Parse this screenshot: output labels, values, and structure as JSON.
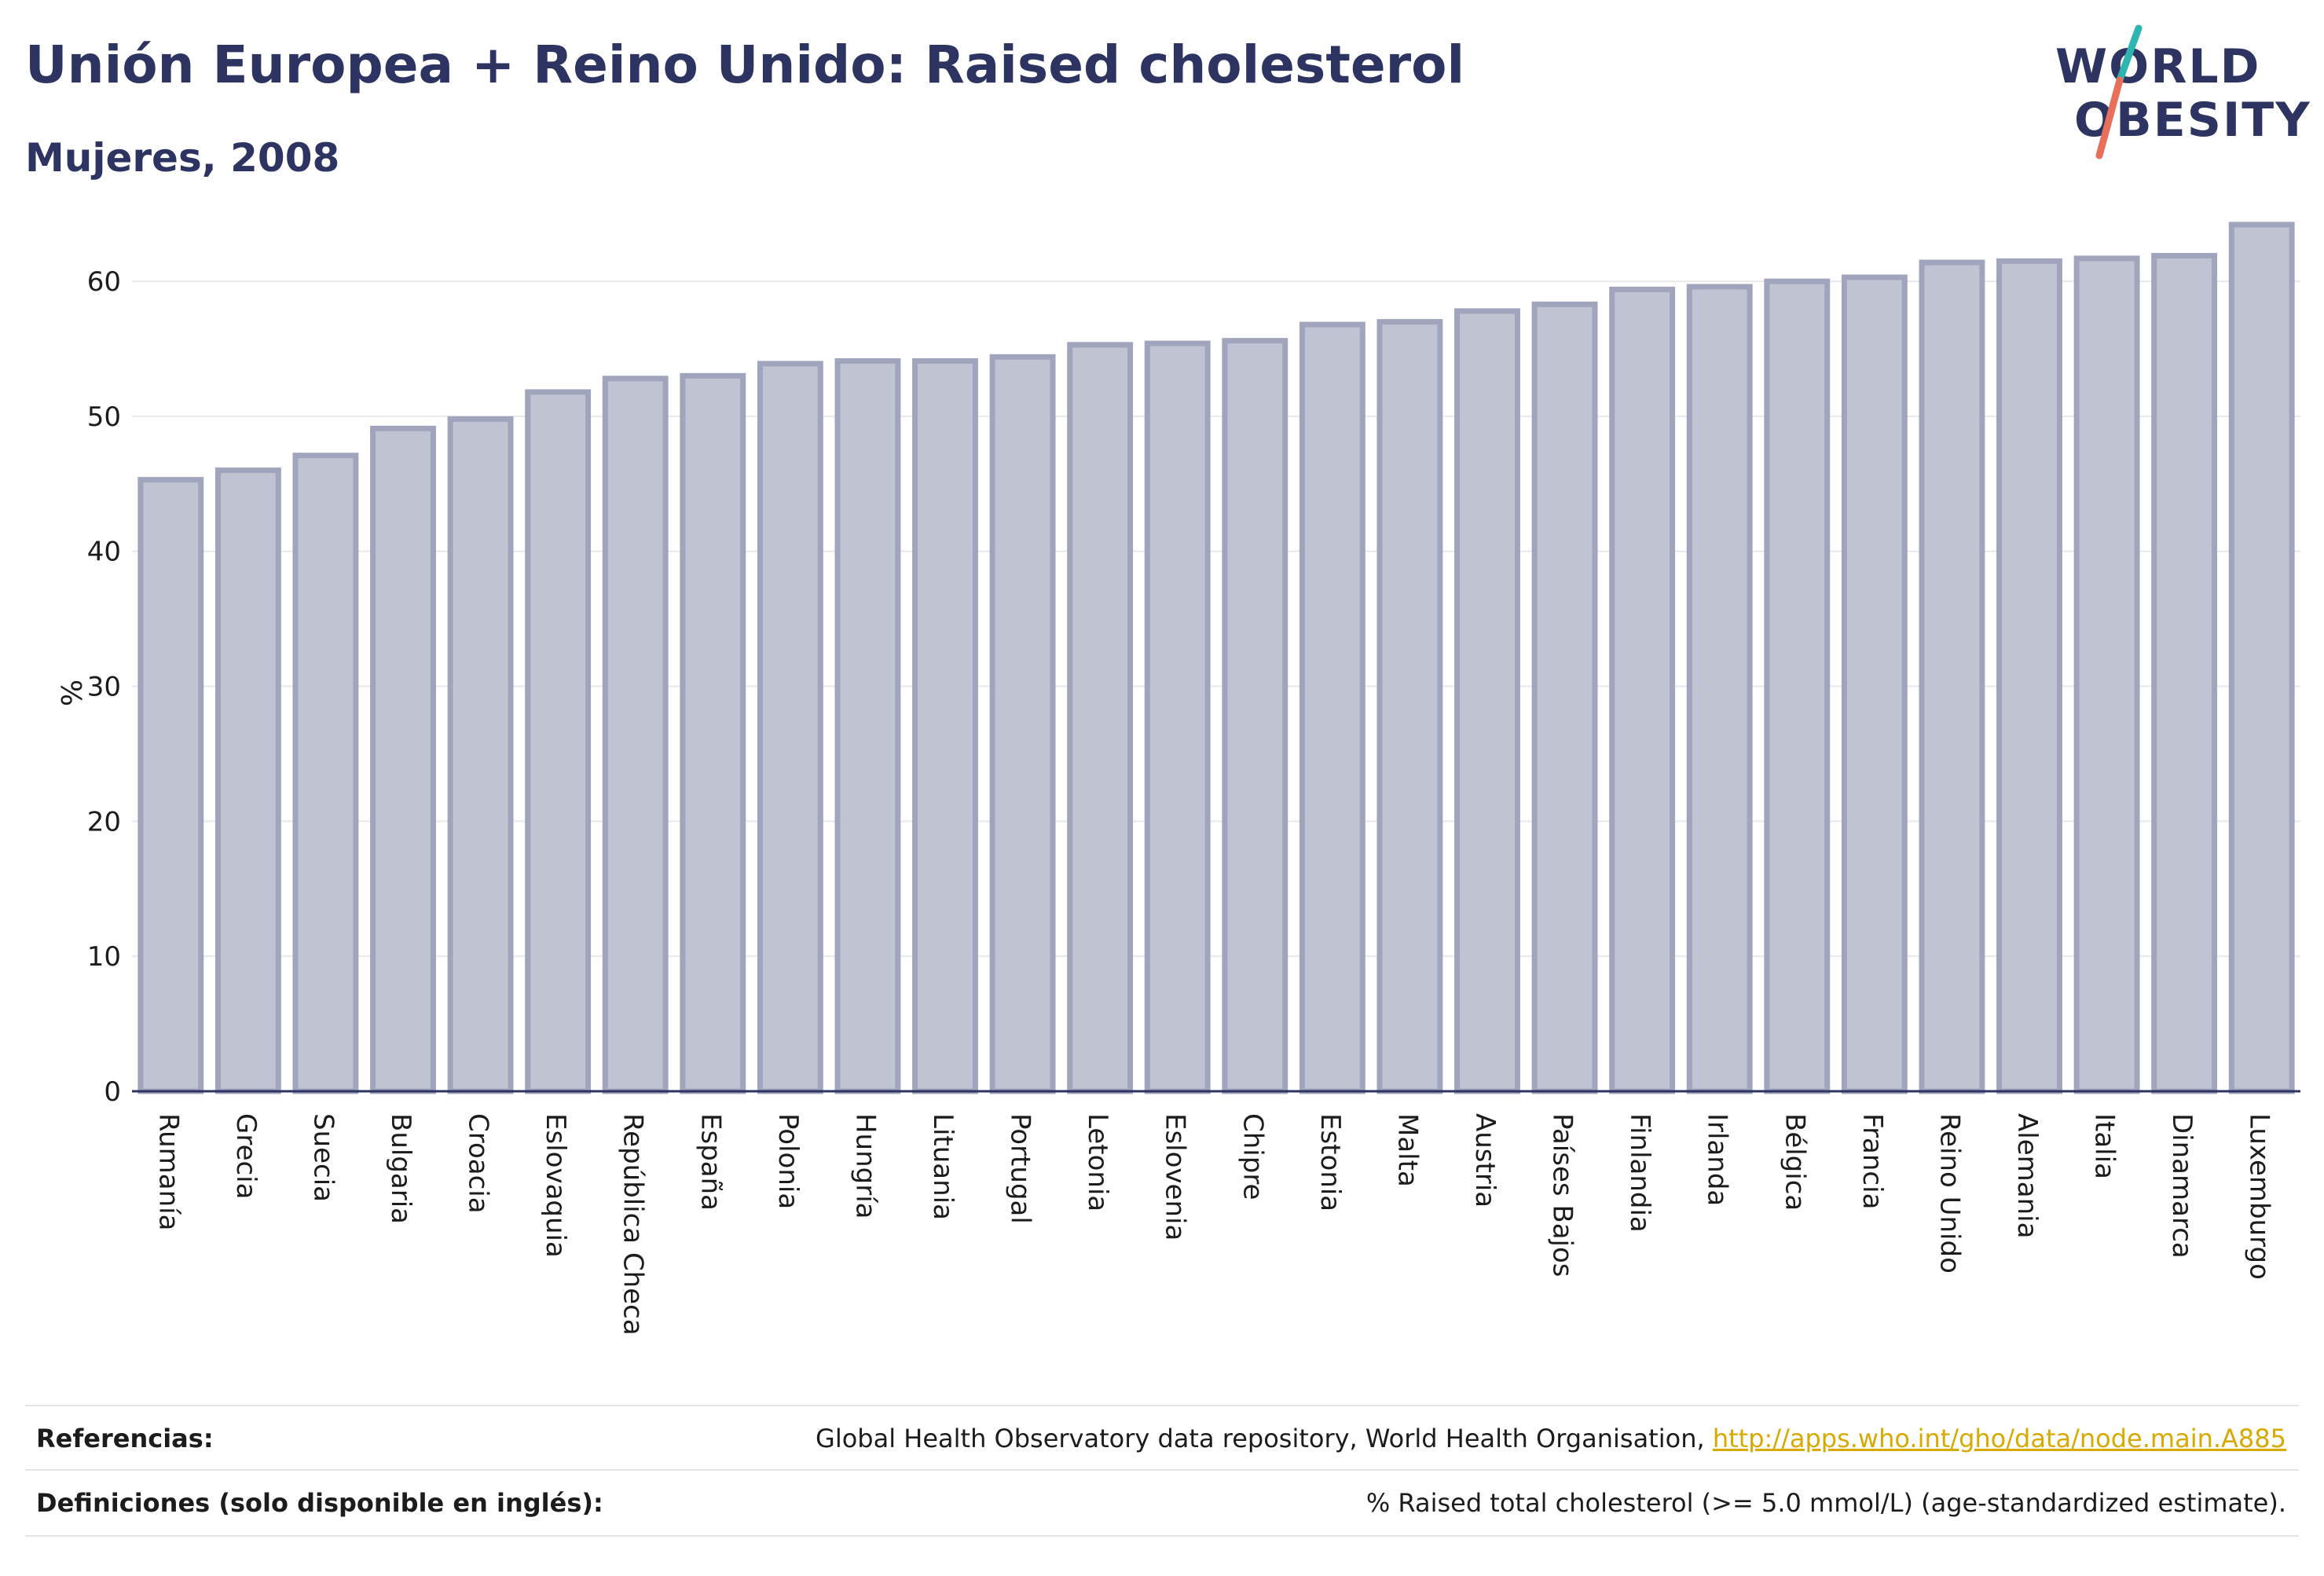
{
  "header": {
    "title": "Unión Europea + Reino Unido: Raised cholesterol",
    "subtitle": "Mujeres, 2008"
  },
  "logo": {
    "line1": "WORLD",
    "line2": "OBESITY",
    "slash_colors": [
      "#2fb5b0",
      "#e8705a"
    ]
  },
  "chart_data": {
    "type": "bar",
    "categories": [
      "Rumanía",
      "Grecia",
      "Suecia",
      "Bulgaria",
      "Croacia",
      "Eslovaquia",
      "República Checa",
      "España",
      "Polonia",
      "Hungría",
      "Lituania",
      "Portugal",
      "Letonia",
      "Eslovenia",
      "Chipre",
      "Estonia",
      "Malta",
      "Austria",
      "Países Bajos",
      "Finlandia",
      "Irlanda",
      "Bélgica",
      "Francia",
      "Reino Unido",
      "Alemania",
      "Italia",
      "Dinamarca",
      "Luxemburgo"
    ],
    "values": [
      45.3,
      46.0,
      47.1,
      49.1,
      49.8,
      51.8,
      52.8,
      53.0,
      53.9,
      54.1,
      54.1,
      54.4,
      55.3,
      55.4,
      55.6,
      56.8,
      57.0,
      57.8,
      58.3,
      59.4,
      59.6,
      60.0,
      60.3,
      61.4,
      61.5,
      61.7,
      61.9,
      64.2
    ],
    "ylabel": "%",
    "ylim": [
      0,
      66
    ],
    "yticks": [
      0,
      10,
      20,
      30,
      40,
      50,
      60
    ],
    "grid": true,
    "bar_fill": "#c0c3d1",
    "bar_stroke": "#a0a4bd",
    "axis_color": "#2d3461"
  },
  "footer": {
    "references_label": "Referencias:",
    "references_text": "Global Health Observatory data repository, World Health Organisation, ",
    "references_link": "http://apps.who.int/gho/data/node.main.A885",
    "definitions_label": "Definiciones (solo disponible en inglés):",
    "definitions_text": "% Raised total cholesterol (>= 5.0 mmol/L) (age-standardized estimate)."
  }
}
